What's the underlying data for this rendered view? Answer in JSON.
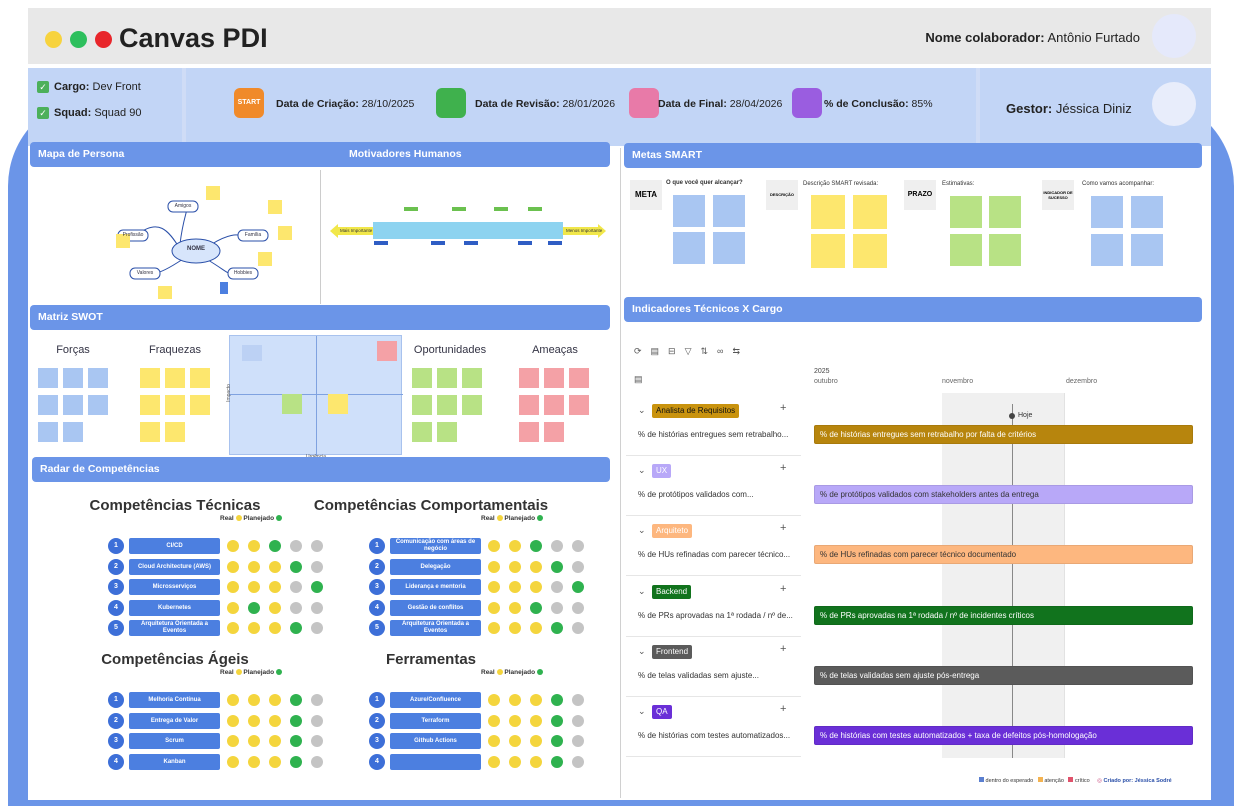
{
  "header": {
    "title": "Canvas PDI",
    "collaborator_label": "Nome colaborador:",
    "collaborator_name": "Antônio Furtado"
  },
  "info": {
    "cargo_label": "Cargo:",
    "cargo": "Dev Front",
    "squad_label": "Squad:",
    "squad": "Squad 90",
    "criacao_label": "Data de Criação:",
    "criacao": "28/10/2025",
    "revisao_label": "Data de Revisão:",
    "revisao": "28/01/2026",
    "final_label": "Data de Final:",
    "final": "28/04/2026",
    "conclusao_label": "% de Conclusão:",
    "conclusao": "85%",
    "gestor_label": "Gestor:",
    "gestor": "Jéssica Diniz"
  },
  "sections": {
    "persona": "Mapa de Persona",
    "motivadores": "Motivadores Humanos",
    "metas": "Metas SMART",
    "swot": "Matriz SWOT",
    "indicadores": "Indicadores Técnicos X Cargo",
    "radar": "Radar de Competências"
  },
  "persona": {
    "center": "NOME",
    "nodes": [
      "Amigos",
      "Família",
      "Profissão",
      "Valores",
      "Hobbies"
    ]
  },
  "motivadores": {
    "left": "Mais Importante",
    "right": "Menos Importante"
  },
  "metas": {
    "meta": "META",
    "question": "O que você quer alcançar?",
    "descricao": "DESCRIÇÃO",
    "descricao_smart": "Descrição SMART revisada:",
    "prazo": "PRAZO",
    "estimativas": "Estimativas:",
    "indicador": "INDICADOR DE SUCESSO",
    "acompanhar": "Como vamos acompanhar:"
  },
  "swot": {
    "forcas": "Forças",
    "fraquezas": "Fraquezas",
    "oportunidades": "Oportunidades",
    "ameacas": "Ameaças",
    "urgencia": "Urgência",
    "impacto": "Impacto"
  },
  "competencias": {
    "real": "Real",
    "planejado": "Planejado",
    "groups": [
      {
        "title": "Competências Técnicas",
        "items": [
          "CI/CD",
          "Cloud Architecture (AWS)",
          "Microsserviços",
          "Kubernetes",
          "Arquitetura Orientada a Eventos"
        ],
        "levels": [
          [
            "y",
            "y",
            "g",
            "x",
            "x"
          ],
          [
            "y",
            "y",
            "y",
            "g",
            "x"
          ],
          [
            "y",
            "y",
            "y",
            "x",
            "g"
          ],
          [
            "y",
            "g",
            "y",
            "x",
            "x"
          ],
          [
            "y",
            "y",
            "y",
            "g",
            "x"
          ]
        ]
      },
      {
        "title": "Competências Comportamentais",
        "items": [
          "Comunicação com áreas de negócio",
          "Delegação",
          "Liderança e mentoria",
          "Gestão de conflitos",
          "Arquitetura Orientada a Eventos"
        ],
        "levels": [
          [
            "y",
            "y",
            "g",
            "x",
            "x"
          ],
          [
            "y",
            "y",
            "y",
            "g",
            "x"
          ],
          [
            "y",
            "y",
            "y",
            "x",
            "g"
          ],
          [
            "y",
            "y",
            "g",
            "x",
            "x"
          ],
          [
            "y",
            "y",
            "y",
            "g",
            "x"
          ]
        ]
      },
      {
        "title": "Competências Ágeis",
        "items": [
          "Melhoria Contínua",
          "Entrega de Valor",
          "Scrum",
          "Kanban"
        ],
        "levels": [
          [
            "y",
            "y",
            "y",
            "g",
            "x"
          ],
          [
            "y",
            "y",
            "y",
            "g",
            "x"
          ],
          [
            "y",
            "y",
            "y",
            "g",
            "x"
          ],
          [
            "y",
            "y",
            "y",
            "g",
            "x"
          ]
        ]
      },
      {
        "title": "Ferramentas",
        "items": [
          "Azure/Confluence",
          "Terraform",
          "Github Actions",
          ""
        ],
        "levels": [
          [
            "y",
            "y",
            "y",
            "g",
            "x"
          ],
          [
            "y",
            "y",
            "y",
            "g",
            "x"
          ],
          [
            "y",
            "y",
            "y",
            "g",
            "x"
          ],
          [
            "y",
            "y",
            "y",
            "g",
            "x"
          ]
        ]
      }
    ]
  },
  "timeline": {
    "year": "2025",
    "months": [
      "outubro",
      "novembro",
      "dezembro"
    ],
    "today": "Hoje",
    "rows": [
      {
        "role": "Analista de Requisitos",
        "text": "% de histórias entregues sem retrabalho...",
        "bar": "% de histórias entregues sem retrabalho por falta de critérios",
        "color": "#b7850d",
        "badge": "#c9930e",
        "badge_text": "#111",
        "bar_text": "#fff"
      },
      {
        "role": "UX",
        "text": "% de protótipos validados com...",
        "bar": "% de protótipos validados com stakeholders antes da entrega",
        "color": "#b8a8f8",
        "badge": "#b8a8f8",
        "badge_text": "#fff",
        "bar_text": "#333"
      },
      {
        "role": "Arquiteto",
        "text": "% de HUs refinadas com parecer técnico...",
        "bar": "% de HUs refinadas com parecer técnico documentado",
        "color": "#fdb77f",
        "badge": "#fdb77f",
        "badge_text": "#fff",
        "bar_text": "#333"
      },
      {
        "role": "Backend",
        "text": "% de PRs aprovadas na 1ª rodada / nº de...",
        "bar": "% de PRs aprovadas na 1ª rodada / nº de incidentes críticos",
        "color": "#11731d",
        "badge": "#11731d",
        "badge_text": "#fff",
        "bar_text": "#fff"
      },
      {
        "role": "Frontend",
        "text": "% de telas validadas sem ajuste...",
        "bar": "% de telas validadas sem ajuste pós-entrega",
        "color": "#5b5b5b",
        "badge": "#5b5b5b",
        "badge_text": "#fff",
        "bar_text": "#fff"
      },
      {
        "role": "QA",
        "text": "% de histórias com testes automatizados...",
        "bar": "% de histórias com testes automatizados + taxa de defeitos pós-homologação",
        "color": "#6a2fd7",
        "badge": "#6a2fd7",
        "badge_text": "#fff",
        "bar_text": "#fff"
      }
    ]
  },
  "footer": {
    "dentro": "dentro do esperado",
    "atencao": "atenção",
    "critico": "crítico",
    "criado": "Criado por: Jéssica Sodré"
  }
}
